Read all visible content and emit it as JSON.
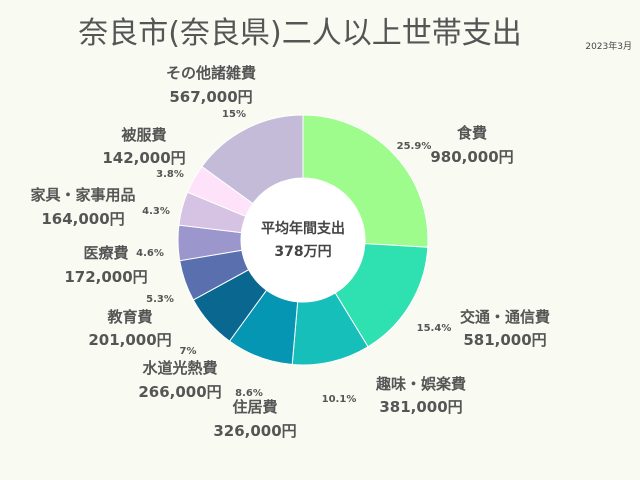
{
  "title": "奈良市(奈良県)二人以上世帯支出",
  "date": "2023年3月",
  "center": {
    "line1": "平均年間支出",
    "line2": "378万円"
  },
  "chart_data": {
    "type": "pie",
    "donut": true,
    "categories": [
      "食費",
      "交通・通信費",
      "趣味・娯楽費",
      "住居費",
      "水道光熱費",
      "教育費",
      "医療費",
      "家具・家事用品",
      "被服費",
      "その他諸雑費"
    ],
    "values": [
      980000,
      581000,
      381000,
      326000,
      266000,
      201000,
      172000,
      164000,
      142000,
      567000
    ],
    "value_labels": [
      "980,000円",
      "581,000円",
      "381,000円",
      "326,000円",
      "266,000円",
      "201,000円",
      "172,000円",
      "164,000円",
      "142,000円",
      "567,000円"
    ],
    "percent_labels": [
      "25.9%",
      "15.4%",
      "10.1%",
      "8.6%",
      "7%",
      "5.3%",
      "4.6%",
      "4.3%",
      "3.8%",
      "15%"
    ],
    "colors": [
      "#9dfc8c",
      "#2fe0b0",
      "#17bfba",
      "#0596b4",
      "#0a6790",
      "#1e5596",
      "#5a6fad",
      "#9b96cb",
      "#d6c2e3",
      "#fee2f9",
      "#c4bbd9"
    ]
  }
}
